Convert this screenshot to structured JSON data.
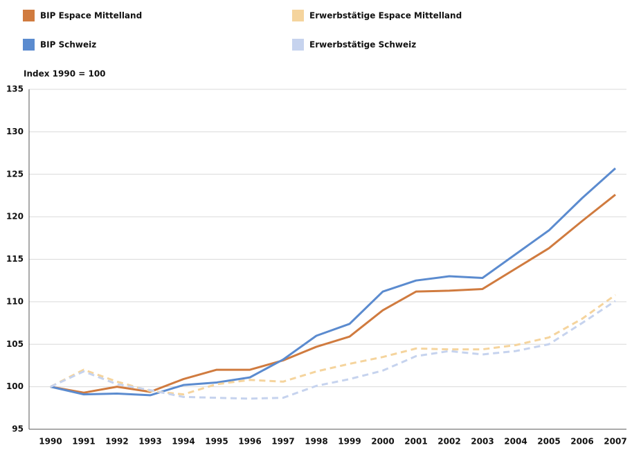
{
  "chart_data": {
    "type": "line",
    "y_label": "Index 1990 = 100",
    "x": [
      "1990",
      "1991",
      "1992",
      "1993",
      "1994",
      "1995",
      "1996",
      "1997",
      "1998",
      "1999",
      "2000",
      "2001",
      "2002",
      "2003",
      "2004",
      "2005",
      "2006",
      "2007"
    ],
    "series": [
      {
        "name": "BIP Espace Mittelland",
        "color": "#d07b3f",
        "dash": false,
        "values": [
          100,
          99.3,
          100,
          99.4,
          100.9,
          102,
          102,
          103.1,
          104.7,
          105.9,
          109,
          111.2,
          111.3,
          111.5,
          113.9,
          116.3,
          119.5,
          122.6
        ]
      },
      {
        "name": "BIP Schweiz",
        "color": "#5b8bcf",
        "dash": false,
        "values": [
          100,
          99.1,
          99.2,
          99,
          100.2,
          100.5,
          101.1,
          103.2,
          106,
          107.4,
          111.2,
          112.5,
          113,
          112.8,
          115.6,
          118.4,
          122.2,
          125.7
        ]
      },
      {
        "name": "Erwerbstätige Espace Mittelland",
        "color": "#f5d49d",
        "dash": true,
        "values": [
          100,
          102,
          100.6,
          99.5,
          99.1,
          100.3,
          100.8,
          100.6,
          101.8,
          102.7,
          103.5,
          104.5,
          104.4,
          104.4,
          104.9,
          105.8,
          108,
          110.8
        ]
      },
      {
        "name": "Erwerbstätige Schweiz",
        "color": "#c6d3ee",
        "dash": true,
        "values": [
          100,
          101.8,
          100.3,
          99.6,
          98.8,
          98.7,
          98.6,
          98.7,
          100.1,
          100.9,
          101.9,
          103.6,
          104.2,
          103.8,
          104.2,
          105,
          107.5,
          110.1
        ]
      }
    ],
    "ylim": [
      95,
      135
    ],
    "yticks": [
      95,
      100,
      105,
      110,
      115,
      120,
      125,
      130,
      135
    ],
    "grid": true
  }
}
